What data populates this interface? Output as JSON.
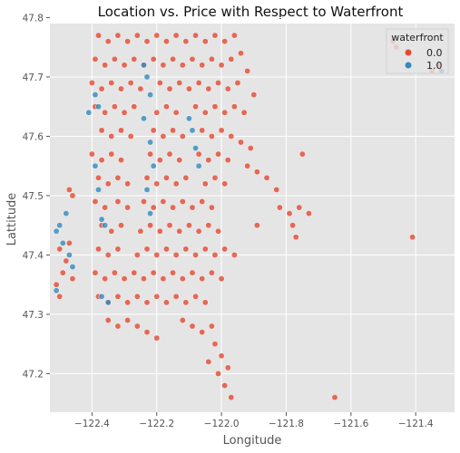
{
  "chart_data": {
    "type": "scatter",
    "title": "Location vs. Price with Respect to Waterfront",
    "xlabel": "Longitude",
    "ylabel": "Lattitude",
    "xlim": [
      -122.53,
      -121.28
    ],
    "ylim": [
      47.135,
      47.79
    ],
    "x_ticks": [
      -122.4,
      -122.2,
      -122.0,
      -121.8,
      -121.6,
      -121.4
    ],
    "x_tick_labels": [
      "−122.4",
      "−122.2",
      "−122.0",
      "−121.8",
      "−121.6",
      "−121.4"
    ],
    "y_ticks": [
      47.2,
      47.3,
      47.4,
      47.5,
      47.6,
      47.7,
      47.8
    ],
    "y_tick_labels": [
      "47.2",
      "47.3",
      "47.4",
      "47.5",
      "47.6",
      "47.7",
      "47.8"
    ],
    "grid": true,
    "legend": {
      "title": "waterfront",
      "placement": "top-right",
      "entries": [
        {
          "label": "0.0",
          "color": "#E24A33"
        },
        {
          "label": "1.0",
          "color": "#348ABD"
        }
      ]
    },
    "series": [
      {
        "name": "0.0",
        "color": "#E24A33",
        "points": [
          [
            -122.38,
            47.77
          ],
          [
            -122.35,
            47.76
          ],
          [
            -122.32,
            47.77
          ],
          [
            -122.29,
            47.76
          ],
          [
            -122.26,
            47.77
          ],
          [
            -122.23,
            47.76
          ],
          [
            -122.2,
            47.77
          ],
          [
            -122.17,
            47.76
          ],
          [
            -122.14,
            47.77
          ],
          [
            -122.11,
            47.76
          ],
          [
            -122.08,
            47.77
          ],
          [
            -122.05,
            47.76
          ],
          [
            -122.02,
            47.77
          ],
          [
            -121.99,
            47.76
          ],
          [
            -121.96,
            47.77
          ],
          [
            -122.39,
            47.73
          ],
          [
            -122.36,
            47.72
          ],
          [
            -122.33,
            47.73
          ],
          [
            -122.3,
            47.72
          ],
          [
            -122.27,
            47.73
          ],
          [
            -122.24,
            47.72
          ],
          [
            -122.21,
            47.73
          ],
          [
            -122.18,
            47.72
          ],
          [
            -122.15,
            47.73
          ],
          [
            -122.12,
            47.72
          ],
          [
            -122.09,
            47.73
          ],
          [
            -122.06,
            47.72
          ],
          [
            -122.03,
            47.73
          ],
          [
            -122.0,
            47.72
          ],
          [
            -121.97,
            47.73
          ],
          [
            -122.4,
            47.69
          ],
          [
            -122.37,
            47.68
          ],
          [
            -122.34,
            47.69
          ],
          [
            -122.31,
            47.68
          ],
          [
            -122.28,
            47.69
          ],
          [
            -122.25,
            47.68
          ],
          [
            -122.19,
            47.69
          ],
          [
            -122.16,
            47.68
          ],
          [
            -122.13,
            47.69
          ],
          [
            -122.1,
            47.68
          ],
          [
            -122.07,
            47.69
          ],
          [
            -122.04,
            47.68
          ],
          [
            -122.01,
            47.69
          ],
          [
            -121.98,
            47.68
          ],
          [
            -121.95,
            47.69
          ],
          [
            -122.39,
            47.65
          ],
          [
            -122.36,
            47.64
          ],
          [
            -122.33,
            47.65
          ],
          [
            -122.3,
            47.64
          ],
          [
            -122.27,
            47.65
          ],
          [
            -122.2,
            47.64
          ],
          [
            -122.17,
            47.65
          ],
          [
            -122.14,
            47.64
          ],
          [
            -122.08,
            47.65
          ],
          [
            -122.05,
            47.64
          ],
          [
            -122.02,
            47.65
          ],
          [
            -121.99,
            47.64
          ],
          [
            -121.96,
            47.65
          ],
          [
            -121.93,
            47.64
          ],
          [
            -122.37,
            47.61
          ],
          [
            -122.34,
            47.6
          ],
          [
            -122.31,
            47.61
          ],
          [
            -122.28,
            47.6
          ],
          [
            -122.21,
            47.61
          ],
          [
            -122.18,
            47.6
          ],
          [
            -122.15,
            47.61
          ],
          [
            -122.12,
            47.6
          ],
          [
            -122.06,
            47.61
          ],
          [
            -122.03,
            47.6
          ],
          [
            -122.0,
            47.61
          ],
          [
            -121.97,
            47.6
          ],
          [
            -121.94,
            47.59
          ],
          [
            -121.91,
            47.58
          ],
          [
            -122.4,
            47.57
          ],
          [
            -122.37,
            47.56
          ],
          [
            -122.34,
            47.57
          ],
          [
            -122.31,
            47.56
          ],
          [
            -122.22,
            47.57
          ],
          [
            -122.19,
            47.56
          ],
          [
            -122.16,
            47.57
          ],
          [
            -122.13,
            47.56
          ],
          [
            -122.07,
            47.57
          ],
          [
            -122.04,
            47.56
          ],
          [
            -122.01,
            47.57
          ],
          [
            -121.98,
            47.56
          ],
          [
            -121.92,
            47.55
          ],
          [
            -121.89,
            47.54
          ],
          [
            -121.86,
            47.53
          ],
          [
            -122.38,
            47.53
          ],
          [
            -122.35,
            47.52
          ],
          [
            -122.32,
            47.53
          ],
          [
            -122.29,
            47.52
          ],
          [
            -122.23,
            47.53
          ],
          [
            -122.2,
            47.52
          ],
          [
            -122.17,
            47.53
          ],
          [
            -122.14,
            47.52
          ],
          [
            -122.11,
            47.53
          ],
          [
            -122.05,
            47.52
          ],
          [
            -122.02,
            47.53
          ],
          [
            -121.99,
            47.52
          ],
          [
            -121.83,
            47.51
          ],
          [
            -122.39,
            47.49
          ],
          [
            -122.36,
            47.48
          ],
          [
            -122.32,
            47.49
          ],
          [
            -122.29,
            47.48
          ],
          [
            -122.24,
            47.49
          ],
          [
            -122.21,
            47.48
          ],
          [
            -122.18,
            47.49
          ],
          [
            -122.15,
            47.48
          ],
          [
            -122.12,
            47.49
          ],
          [
            -122.09,
            47.48
          ],
          [
            -122.06,
            47.49
          ],
          [
            -122.03,
            47.48
          ],
          [
            -121.82,
            47.48
          ],
          [
            -121.79,
            47.47
          ],
          [
            -121.76,
            47.48
          ],
          [
            -121.73,
            47.47
          ],
          [
            -121.78,
            47.45
          ],
          [
            -122.37,
            47.45
          ],
          [
            -122.34,
            47.44
          ],
          [
            -122.31,
            47.45
          ],
          [
            -122.25,
            47.44
          ],
          [
            -122.22,
            47.45
          ],
          [
            -122.19,
            47.44
          ],
          [
            -122.16,
            47.45
          ],
          [
            -122.13,
            47.44
          ],
          [
            -122.1,
            47.45
          ],
          [
            -122.07,
            47.44
          ],
          [
            -122.04,
            47.45
          ],
          [
            -122.01,
            47.44
          ],
          [
            -122.38,
            47.41
          ],
          [
            -122.35,
            47.4
          ],
          [
            -122.32,
            47.41
          ],
          [
            -122.26,
            47.4
          ],
          [
            -122.23,
            47.41
          ],
          [
            -122.2,
            47.4
          ],
          [
            -122.17,
            47.41
          ],
          [
            -122.14,
            47.4
          ],
          [
            -122.11,
            47.41
          ],
          [
            -122.08,
            47.4
          ],
          [
            -122.05,
            47.41
          ],
          [
            -122.02,
            47.4
          ],
          [
            -121.99,
            47.41
          ],
          [
            -121.96,
            47.4
          ],
          [
            -122.39,
            47.37
          ],
          [
            -122.36,
            47.36
          ],
          [
            -122.33,
            47.37
          ],
          [
            -122.3,
            47.36
          ],
          [
            -122.27,
            47.37
          ],
          [
            -122.24,
            47.36
          ],
          [
            -122.21,
            47.37
          ],
          [
            -122.18,
            47.36
          ],
          [
            -122.15,
            47.37
          ],
          [
            -122.12,
            47.36
          ],
          [
            -122.09,
            47.37
          ],
          [
            -122.06,
            47.36
          ],
          [
            -122.03,
            47.37
          ],
          [
            -122.0,
            47.36
          ],
          [
            -122.38,
            47.33
          ],
          [
            -122.35,
            47.32
          ],
          [
            -122.32,
            47.33
          ],
          [
            -122.29,
            47.32
          ],
          [
            -122.26,
            47.33
          ],
          [
            -122.23,
            47.32
          ],
          [
            -122.2,
            47.33
          ],
          [
            -122.17,
            47.32
          ],
          [
            -122.14,
            47.33
          ],
          [
            -122.11,
            47.32
          ],
          [
            -122.08,
            47.33
          ],
          [
            -122.05,
            47.32
          ],
          [
            -122.35,
            47.29
          ],
          [
            -122.32,
            47.28
          ],
          [
            -122.29,
            47.29
          ],
          [
            -122.26,
            47.28
          ],
          [
            -122.23,
            47.27
          ],
          [
            -122.2,
            47.26
          ],
          [
            -122.12,
            47.29
          ],
          [
            -122.09,
            47.28
          ],
          [
            -122.06,
            47.27
          ],
          [
            -122.03,
            47.28
          ],
          [
            -122.02,
            47.25
          ],
          [
            -122.0,
            47.23
          ],
          [
            -121.98,
            47.21
          ],
          [
            -122.01,
            47.2
          ],
          [
            -121.99,
            47.18
          ],
          [
            -121.97,
            47.16
          ],
          [
            -122.04,
            47.22
          ],
          [
            -122.5,
            47.41
          ],
          [
            -122.48,
            47.39
          ],
          [
            -122.49,
            47.37
          ],
          [
            -122.47,
            47.42
          ],
          [
            -122.46,
            47.36
          ],
          [
            -122.51,
            47.35
          ],
          [
            -122.5,
            47.33
          ],
          [
            -122.47,
            47.51
          ],
          [
            -122.46,
            47.5
          ],
          [
            -121.89,
            47.45
          ],
          [
            -121.75,
            47.57
          ],
          [
            -121.77,
            47.43
          ],
          [
            -121.41,
            47.43
          ],
          [
            -121.65,
            47.16
          ],
          [
            -121.47,
            47.76
          ],
          [
            -121.46,
            47.75
          ],
          [
            -121.35,
            47.71
          ],
          [
            -121.32,
            47.71
          ],
          [
            -121.33,
            47.72
          ],
          [
            -121.94,
            47.74
          ],
          [
            -121.92,
            47.71
          ],
          [
            -121.9,
            47.67
          ]
        ]
      },
      {
        "name": "1.0",
        "color": "#348ABD",
        "points": [
          [
            -122.5,
            47.45
          ],
          [
            -122.48,
            47.47
          ],
          [
            -122.51,
            47.44
          ],
          [
            -122.49,
            47.42
          ],
          [
            -122.47,
            47.4
          ],
          [
            -122.46,
            47.38
          ],
          [
            -122.51,
            47.34
          ],
          [
            -122.39,
            47.67
          ],
          [
            -122.38,
            47.65
          ],
          [
            -122.41,
            47.64
          ],
          [
            -122.39,
            47.55
          ],
          [
            -122.38,
            47.51
          ],
          [
            -122.37,
            47.46
          ],
          [
            -122.36,
            47.45
          ],
          [
            -122.37,
            47.33
          ],
          [
            -122.35,
            47.32
          ],
          [
            -122.24,
            47.72
          ],
          [
            -122.23,
            47.7
          ],
          [
            -122.22,
            47.67
          ],
          [
            -122.24,
            47.63
          ],
          [
            -122.22,
            47.59
          ],
          [
            -122.21,
            47.55
          ],
          [
            -122.23,
            47.51
          ],
          [
            -122.22,
            47.47
          ],
          [
            -122.09,
            47.61
          ],
          [
            -122.08,
            47.58
          ],
          [
            -122.1,
            47.63
          ],
          [
            -122.07,
            47.55
          ],
          [
            -121.32,
            47.71
          ]
        ]
      }
    ]
  }
}
